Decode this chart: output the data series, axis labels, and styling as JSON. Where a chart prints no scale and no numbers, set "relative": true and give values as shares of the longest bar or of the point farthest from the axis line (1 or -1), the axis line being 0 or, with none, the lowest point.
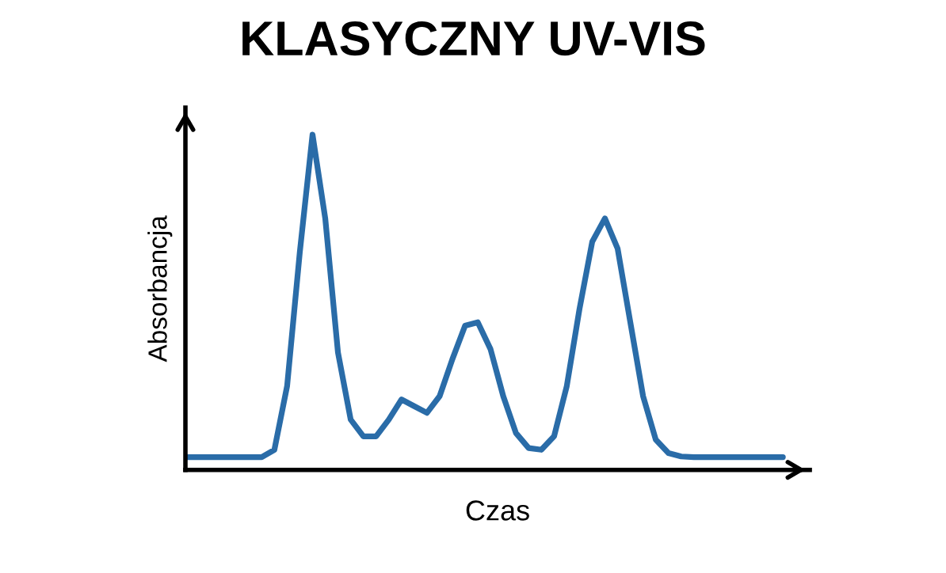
{
  "chart_data": {
    "type": "line",
    "title": "KLASYCZNY UV-VIS",
    "xlabel": "Czas",
    "ylabel": "Absorbancja",
    "relative": true,
    "categories": [
      null,
      null,
      null,
      null,
      null,
      null,
      null,
      null,
      null,
      null,
      null,
      null,
      null,
      null,
      null,
      null,
      null,
      null,
      null,
      null,
      null,
      null,
      null,
      null,
      null,
      null,
      null,
      null,
      null,
      null,
      null,
      null,
      null,
      null,
      null,
      null,
      null,
      null,
      null,
      null,
      null,
      null,
      null,
      null,
      null,
      null,
      null,
      null
    ],
    "series": [
      {
        "color": "#2a6ca8",
        "values": [
          0.038,
          0.038,
          0.038,
          0.038,
          0.038,
          0.038,
          0.038,
          0.06,
          0.25,
          0.65,
          1.0,
          0.75,
          0.35,
          0.15,
          0.1,
          0.1,
          0.15,
          0.21,
          0.19,
          0.17,
          0.22,
          0.33,
          0.43,
          0.44,
          0.36,
          0.22,
          0.11,
          0.065,
          0.06,
          0.1,
          0.25,
          0.48,
          0.68,
          0.75,
          0.66,
          0.44,
          0.22,
          0.09,
          0.05,
          0.04,
          0.038,
          0.038,
          0.038,
          0.038,
          0.038,
          0.038,
          0.038,
          0.038
        ]
      }
    ],
    "grid": false,
    "legend": false
  }
}
